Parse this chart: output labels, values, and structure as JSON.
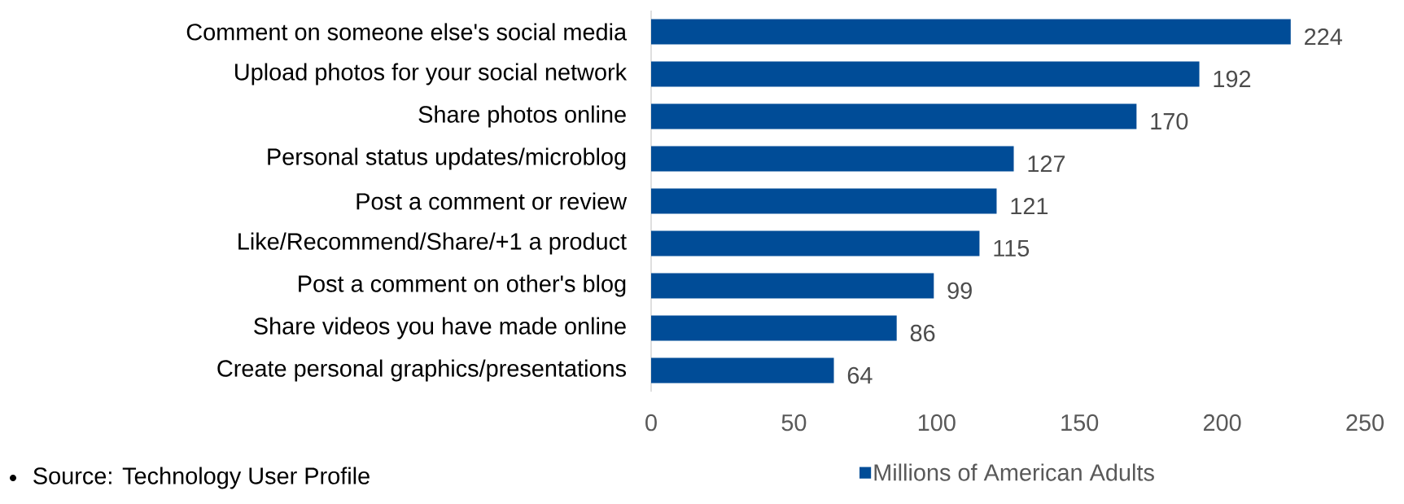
{
  "chart_data": {
    "type": "bar",
    "orientation": "horizontal",
    "categories": [
      "Comment on someone else's social media",
      "Upload photos for your social network",
      "Share photos online",
      "Personal status updates/microblog",
      "Post a comment or review",
      "Like/Recommend/Share/+1 a product",
      "Post a comment on other's blog",
      "Share videos you have made online",
      "Create personal graphics/presentations"
    ],
    "series": [
      {
        "name": "Millions of American Adults",
        "color": "#004c97",
        "values": [
          224,
          192,
          170,
          127,
          121,
          115,
          99,
          86,
          64
        ]
      }
    ],
    "xlim": [
      0,
      250
    ],
    "xticks": [
      0,
      50,
      100,
      150,
      200,
      250
    ],
    "data_labels": true,
    "legend": "bottom",
    "grid": false,
    "annotations": [
      "Source: Technology User Profile"
    ]
  }
}
